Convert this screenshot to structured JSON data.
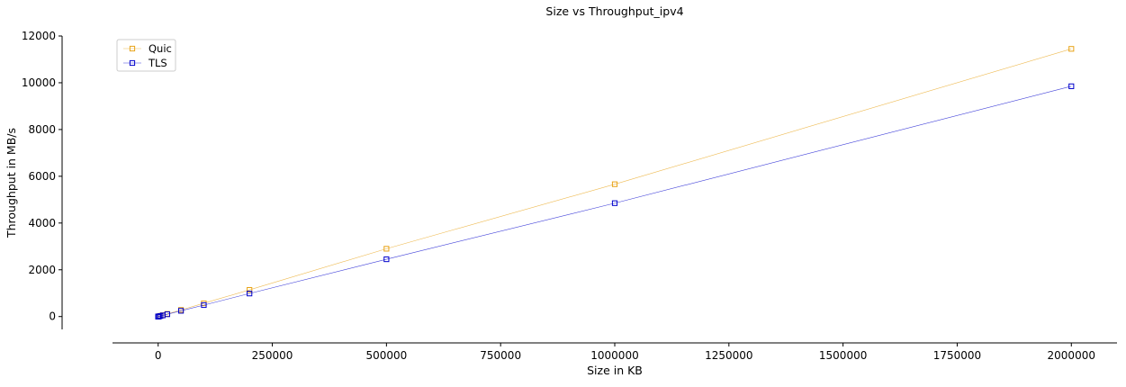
{
  "chart_data": {
    "type": "line",
    "title": "Size vs Throughput_ipv4",
    "xlabel": "Size in KB",
    "ylabel": "Throughput in MB/s",
    "xlim": [
      -100000,
      2100000
    ],
    "ylim": [
      -550,
      12000
    ],
    "x_ticks": [
      0,
      250000,
      500000,
      750000,
      1000000,
      1250000,
      1500000,
      1750000,
      2000000
    ],
    "y_ticks": [
      0,
      2000,
      4000,
      6000,
      8000,
      10000,
      12000
    ],
    "x_tick_labels": [
      "0",
      "250000",
      "500000",
      "750000",
      "1000000",
      "1250000",
      "1500000",
      "1750000",
      "2000000"
    ],
    "y_tick_labels": [
      "0",
      "2000",
      "4000",
      "6000",
      "8000",
      "10000",
      "12000"
    ],
    "grid": false,
    "legend_position": "top-left",
    "marker": "square",
    "x": [
      1,
      2,
      5,
      10,
      20,
      50,
      100,
      200,
      500,
      1000,
      2000,
      5000,
      10000,
      20000,
      50000,
      100000,
      200000,
      500000,
      1000000,
      2000000
    ],
    "series": [
      {
        "name": "Quic",
        "color": "#e8a317",
        "values": [
          0,
          0,
          0,
          0,
          0,
          0,
          1,
          1,
          3,
          6,
          11,
          29,
          57,
          114,
          283,
          568,
          1140,
          2900,
          5660,
          11450
        ]
      },
      {
        "name": "TLS",
        "color": "#0000cc",
        "values": [
          0,
          0,
          0,
          0,
          0,
          0,
          1,
          1,
          2,
          5,
          10,
          24,
          49,
          98,
          245,
          490,
          985,
          2450,
          4850,
          9850
        ]
      }
    ]
  }
}
